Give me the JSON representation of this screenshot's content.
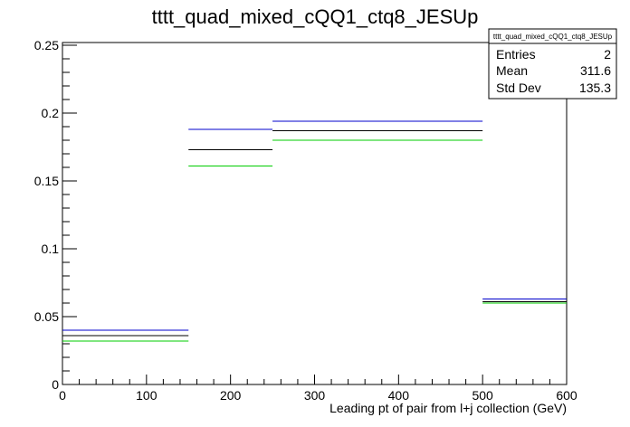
{
  "chart_data": {
    "type": "histogram",
    "title": "tttt_quad_mixed_cQQ1_ctq8_JESUp",
    "xlabel": "Leading pt of pair from l+j collection (GeV)",
    "ylabel": "",
    "xlim": [
      0,
      600
    ],
    "ylim": [
      0,
      0.252
    ],
    "x_ticks": [
      0,
      100,
      200,
      300,
      400,
      500,
      600
    ],
    "x_tick_labels": [
      "0",
      "100",
      "200",
      "300",
      "400",
      "500",
      "600"
    ],
    "y_ticks": [
      0,
      0.05,
      0.1,
      0.15,
      0.2,
      0.25
    ],
    "y_tick_labels": [
      "0",
      "0.05",
      "0.1",
      "0.15",
      "0.2",
      "0.25"
    ],
    "grid": false,
    "bin_edges": [
      0,
      150,
      250,
      500,
      600
    ],
    "series": [
      {
        "color": "#0000cc",
        "values": [
          0.04,
          0.188,
          0.194,
          0.063
        ]
      },
      {
        "color": "#000000",
        "values": [
          0.036,
          0.173,
          0.187,
          0.061
        ]
      },
      {
        "color": "#00cc00",
        "values": [
          0.032,
          0.161,
          0.18,
          0.06
        ]
      }
    ]
  },
  "stats": {
    "title": "tttt_quad_mixed_cQQ1_ctq8_JESUp",
    "rows": [
      {
        "label": "Entries",
        "value": "2"
      },
      {
        "label": "Mean",
        "value": "311.6"
      },
      {
        "label": "Std Dev",
        "value": "135.3"
      }
    ]
  }
}
